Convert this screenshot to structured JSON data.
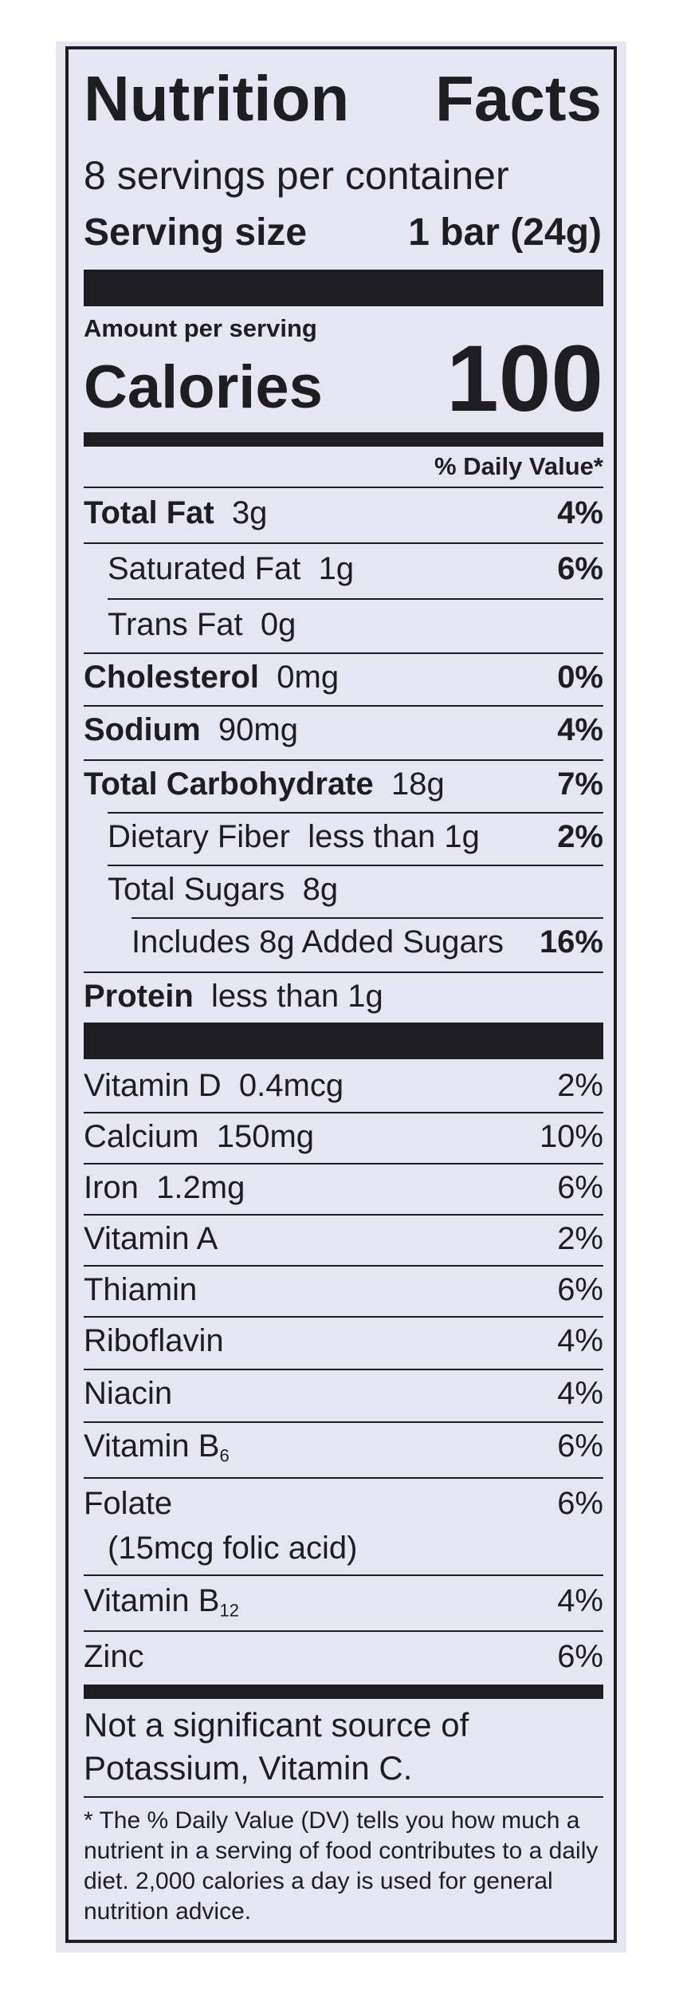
{
  "header": {
    "title_word1": "Nutrition",
    "title_word2": "Facts",
    "servings": "8 servings per container",
    "serving_size_label": "Serving size",
    "serving_size_value": "1 bar (24g)"
  },
  "calories": {
    "amount_per_serving": "Amount per serving",
    "label": "Calories",
    "value": "100"
  },
  "dv_header": "% Daily Value*",
  "nutrients": [
    {
      "name": "Total Fat",
      "amount": "3g",
      "dv": "4%"
    },
    {
      "name": "Saturated Fat",
      "amount": "1g",
      "dv": "6%"
    },
    {
      "name": "Trans Fat",
      "amount": "0g",
      "dv": ""
    },
    {
      "name": "Cholesterol",
      "amount": "0mg",
      "dv": "0%"
    },
    {
      "name": "Sodium",
      "amount": "90mg",
      "dv": "4%"
    },
    {
      "name": "Total Carbohydrate",
      "amount": "18g",
      "dv": "7%"
    },
    {
      "name": "Dietary Fiber",
      "amount": "less than 1g",
      "dv": "2%"
    },
    {
      "name": "Total Sugars",
      "amount": "8g",
      "dv": ""
    },
    {
      "name": "Includes 8g Added Sugars",
      "amount": "",
      "dv": "16%"
    },
    {
      "name": "Protein",
      "amount": "less than 1g",
      "dv": ""
    }
  ],
  "vitamins": [
    {
      "name": "Vitamin D",
      "amount": "0.4mcg",
      "dv": "2%"
    },
    {
      "name": "Calcium",
      "amount": "150mg",
      "dv": "10%"
    },
    {
      "name": "Iron",
      "amount": "1.2mg",
      "dv": "6%"
    },
    {
      "name": "Vitamin A",
      "amount": "",
      "dv": "2%"
    },
    {
      "name": "Thiamin",
      "amount": "",
      "dv": "6%"
    },
    {
      "name": "Riboflavin",
      "amount": "",
      "dv": "4%"
    },
    {
      "name": "Niacin",
      "amount": "",
      "dv": "4%"
    },
    {
      "name": "Vitamin B",
      "sub": "6",
      "amount": "",
      "dv": "6%"
    },
    {
      "name": "Folate",
      "amount": "",
      "dv": "6%",
      "extra": "(15mcg folic acid)"
    },
    {
      "name": "Vitamin B",
      "sub": "12",
      "amount": "",
      "dv": "4%"
    },
    {
      "name": "Zinc",
      "amount": "",
      "dv": "6%"
    }
  ],
  "not_significant": "Not a significant source of Potassium, Vitamin C.",
  "footnote": "* The % Daily Value (DV) tells you how much a nutrient in a serving of food contributes to a daily diet. 2,000 calories a day is used for general nutrition advice."
}
